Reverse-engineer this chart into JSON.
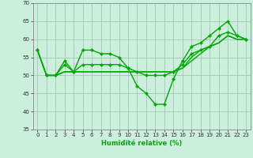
{
  "xlabel": "Humidité relative (%)",
  "bg_color": "#cceedd",
  "grid_color": "#aaccbb",
  "line_color": "#00aa00",
  "ylim": [
    35,
    70
  ],
  "xlim": [
    -0.5,
    23.5
  ],
  "yticks": [
    35,
    40,
    45,
    50,
    55,
    60,
    65,
    70
  ],
  "xticks": [
    0,
    1,
    2,
    3,
    4,
    5,
    6,
    7,
    8,
    9,
    10,
    11,
    12,
    13,
    14,
    15,
    16,
    17,
    18,
    19,
    20,
    21,
    22,
    23
  ],
  "curve1_x": [
    0,
    1,
    2,
    3,
    4,
    5,
    6,
    7,
    8,
    9,
    10,
    11,
    12,
    13,
    14,
    15,
    16,
    17,
    18,
    19,
    20,
    21,
    22,
    23
  ],
  "curve1_y": [
    57,
    50,
    50,
    54,
    51,
    57,
    57,
    56,
    56,
    55,
    52,
    47,
    45,
    42,
    42,
    49,
    54,
    58,
    59,
    61,
    63,
    65,
    61,
    60
  ],
  "curve2_x": [
    0,
    1,
    2,
    3,
    4,
    5,
    6,
    7,
    8,
    9,
    10,
    11,
    12,
    13,
    14,
    15,
    16,
    17,
    18,
    19,
    20,
    21,
    22,
    23
  ],
  "curve2_y": [
    57,
    50,
    50,
    53,
    51,
    53,
    53,
    53,
    53,
    53,
    52,
    51,
    50,
    50,
    50,
    51,
    53,
    56,
    57,
    58,
    61,
    62,
    61,
    60
  ],
  "curve3_x": [
    1,
    2,
    3,
    4,
    5,
    6,
    7,
    8,
    9,
    10,
    11,
    12,
    13,
    14,
    15,
    16,
    17,
    18,
    19,
    20,
    21,
    22,
    23
  ],
  "curve3_y": [
    50,
    50,
    51,
    51,
    51,
    51,
    51,
    51,
    51,
    51,
    51,
    51,
    51,
    51,
    51,
    52,
    55,
    57,
    58,
    59,
    61,
    60,
    60
  ],
  "curve4_x": [
    0,
    1,
    2,
    3,
    4,
    5,
    6,
    7,
    8,
    9,
    10,
    11,
    12,
    13,
    14,
    15,
    16,
    17,
    18,
    19,
    20,
    21,
    22,
    23
  ],
  "curve4_y": [
    57,
    50,
    50,
    51,
    51,
    51,
    51,
    51,
    51,
    51,
    51,
    51,
    51,
    51,
    51,
    51,
    52,
    54,
    56,
    58,
    59,
    61,
    60,
    60
  ]
}
